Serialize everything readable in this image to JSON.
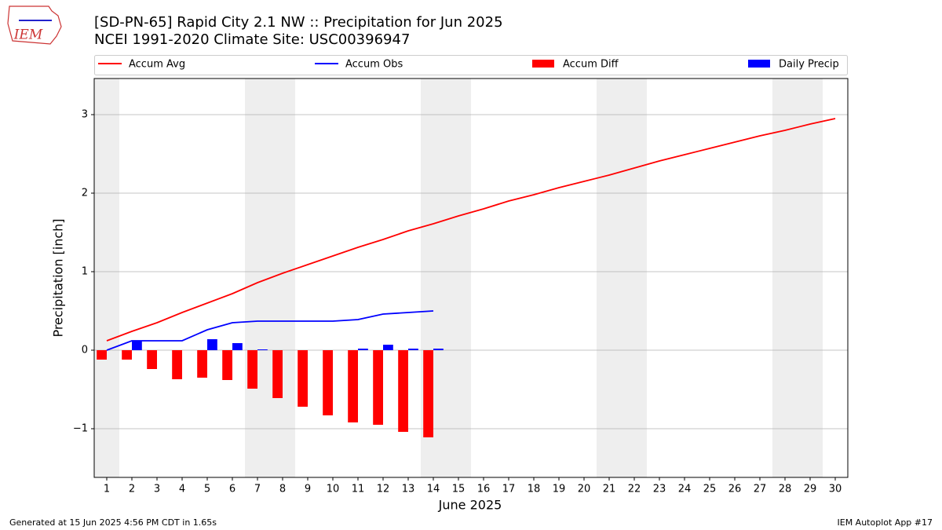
{
  "header": {
    "logo_text": "IEM"
  },
  "chart_data": {
    "type": "combo",
    "title": "[SD-PN-65] Rapid City 2.1 NW :: Precipitation for Jun 2025",
    "subtitle": "NCEI 1991-2020 Climate Site: USC00396947",
    "x_label": "June 2025",
    "y_label": "Precipitation [inch]",
    "x": [
      1,
      2,
      3,
      4,
      5,
      6,
      7,
      8,
      9,
      10,
      11,
      12,
      13,
      14,
      15,
      16,
      17,
      18,
      19,
      20,
      21,
      22,
      23,
      24,
      25,
      26,
      27,
      28,
      29,
      30
    ],
    "xlim": [
      0.5,
      30.5
    ],
    "xticks": [
      1,
      2,
      3,
      4,
      5,
      6,
      7,
      8,
      9,
      10,
      11,
      12,
      13,
      14,
      15,
      16,
      17,
      18,
      19,
      20,
      21,
      22,
      23,
      24,
      25,
      26,
      27,
      28,
      29,
      30
    ],
    "ylim": [
      -1.62,
      3.46
    ],
    "yticks": [
      {
        "value": -1,
        "label": "−1"
      },
      0,
      1,
      2,
      3
    ],
    "grid": true,
    "weekend_days": [
      1,
      7,
      8,
      14,
      15,
      21,
      22,
      28,
      29
    ],
    "series": [
      {
        "name": "Accum Avg",
        "type": "line",
        "color": "#ff0000",
        "values": [
          0.12,
          0.24,
          0.35,
          0.48,
          0.6,
          0.72,
          0.86,
          0.98,
          1.09,
          1.2,
          1.31,
          1.41,
          1.52,
          1.61,
          1.71,
          1.8,
          1.9,
          1.98,
          2.07,
          2.15,
          2.23,
          2.32,
          2.41,
          2.49,
          2.57,
          2.65,
          2.73,
          2.8,
          2.88,
          2.95
        ]
      },
      {
        "name": "Accum Obs",
        "type": "line",
        "color": "#0000ff",
        "values": [
          0.0,
          0.12,
          0.12,
          0.12,
          0.26,
          0.35,
          0.37,
          0.37,
          0.37,
          0.37,
          0.39,
          0.46,
          0.48,
          0.5,
          null,
          null,
          null,
          null,
          null,
          null,
          null,
          null,
          null,
          null,
          null,
          null,
          null,
          null,
          null,
          null
        ]
      },
      {
        "name": "Accum Diff",
        "type": "bar",
        "offset": -0.4,
        "color": "#ff0000",
        "values": [
          -0.12,
          -0.12,
          -0.24,
          -0.37,
          -0.35,
          -0.38,
          -0.49,
          -0.61,
          -0.72,
          -0.83,
          -0.92,
          -0.95,
          -1.04,
          -1.11,
          null,
          null,
          null,
          null,
          null,
          null,
          null,
          null,
          null,
          null,
          null,
          null,
          null,
          null,
          null,
          null
        ]
      },
      {
        "name": "Daily Precip",
        "type": "bar",
        "offset": 0,
        "color": "#0000ff",
        "values": [
          0,
          0.12,
          0,
          0,
          0.14,
          0.09,
          0.01,
          0,
          0,
          0,
          0.02,
          0.07,
          0.02,
          0.02,
          null,
          null,
          null,
          null,
          null,
          null,
          null,
          null,
          null,
          null,
          null,
          null,
          null,
          null,
          null,
          null
        ]
      }
    ],
    "footer_left": "Generated at 15 Jun 2025 4:56 PM CDT in 1.65s",
    "footer_right": "IEM Autoplot App #17"
  }
}
